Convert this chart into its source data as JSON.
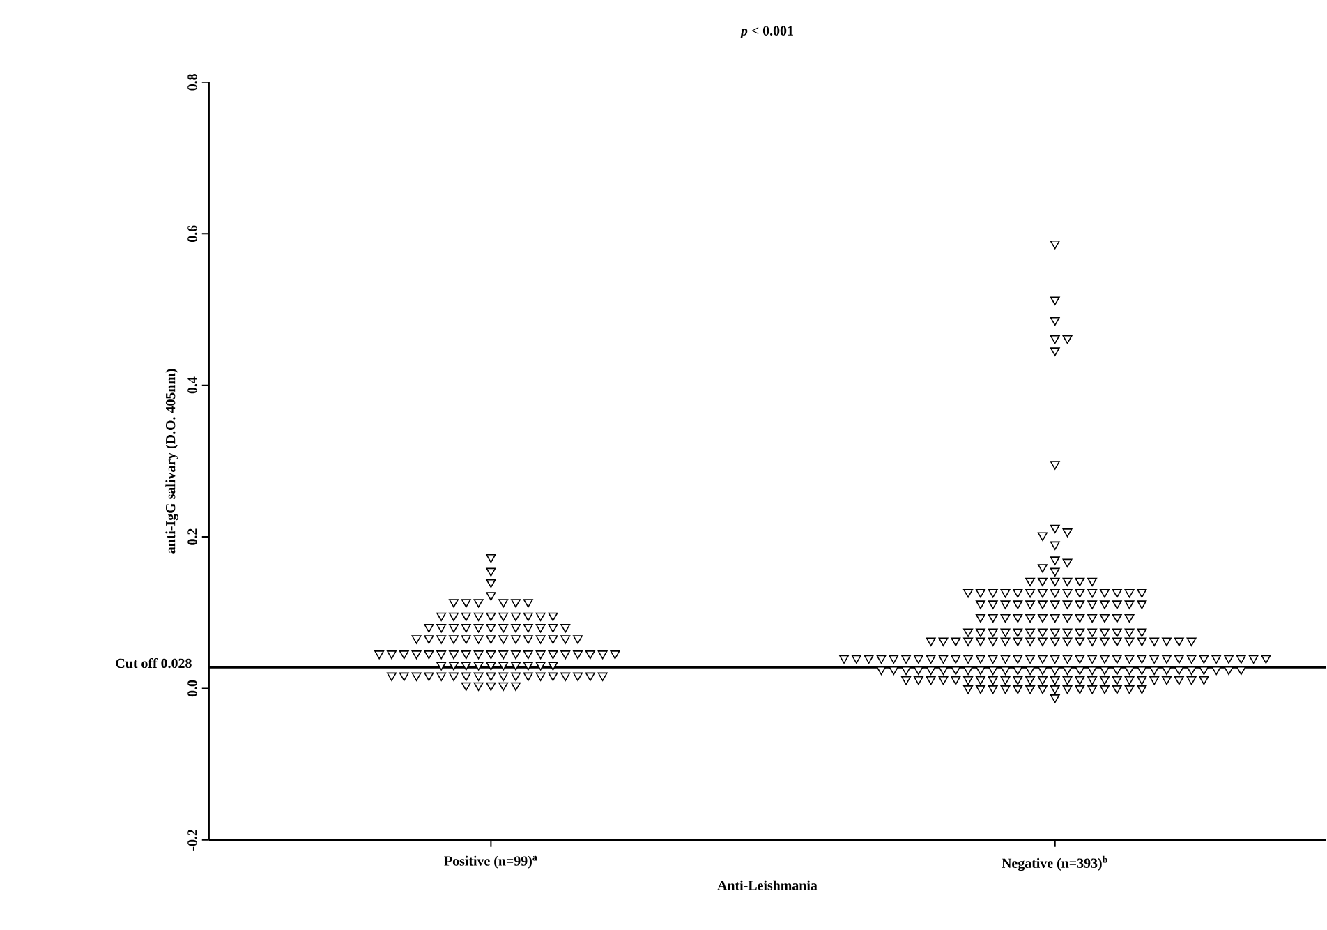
{
  "chart_data": {
    "type": "scatter",
    "title": "*p* < 0.001",
    "xlabel": "Anti-Leishmania",
    "ylabel": "anti-IgG salivary (D.O. 405nm)",
    "categories": [
      "Positive (n=99)$^{a}$",
      "Negative (n=393)$^{b}$"
    ],
    "ylim": [
      -0.2,
      0.8
    ],
    "yticks": [
      -0.2,
      {
        "value": 0,
        "label": "0.0"
      },
      0.2,
      0.4,
      0.6,
      0.8
    ],
    "marker": "triangle",
    "ref_lines": [
      {
        "axis": "y",
        "value": 0.028,
        "label": "Cut off 0.028",
        "color": "#000000",
        "line_style": "solid"
      }
    ],
    "series": [
      {
        "color": "#000000",
        "x": [
          "Positive (n=99)$^{a}$",
          "Positive (n=99)$^{a}$",
          "Positive (n=99)$^{a}$",
          "Positive (n=99)$^{a}$",
          "Positive (n=99)$^{a}$",
          "Positive (n=99)$^{a}$",
          "Positive (n=99)$^{a}$",
          "Positive (n=99)$^{a}$",
          "Positive (n=99)$^{a}$",
          "Positive (n=99)$^{a}$",
          "Positive (n=99)$^{a}$",
          "Positive (n=99)$^{a}$",
          "Positive (n=99)$^{a}$",
          "Positive (n=99)$^{a}$",
          "Positive (n=99)$^{a}$",
          "Positive (n=99)$^{a}$",
          "Positive (n=99)$^{a}$",
          "Positive (n=99)$^{a}$",
          "Positive (n=99)$^{a}$",
          "Positive (n=99)$^{a}$",
          "Positive (n=99)$^{a}$",
          "Positive (n=99)$^{a}$",
          "Positive (n=99)$^{a}$",
          "Positive (n=99)$^{a}$",
          "Positive (n=99)$^{a}$",
          "Positive (n=99)$^{a}$",
          "Positive (n=99)$^{a}$",
          "Positive (n=99)$^{a}$",
          "Positive (n=99)$^{a}$",
          "Positive (n=99)$^{a}$",
          "Positive (n=99)$^{a}$",
          "Positive (n=99)$^{a}$",
          "Positive (n=99)$^{a}$",
          "Positive (n=99)$^{a}$",
          "Positive (n=99)$^{a}$",
          "Positive (n=99)$^{a}$",
          "Positive (n=99)$^{a}$",
          "Positive (n=99)$^{a}$",
          "Positive (n=99)$^{a}$",
          "Positive (n=99)$^{a}$",
          "Positive (n=99)$^{a}$",
          "Positive (n=99)$^{a}$",
          "Positive (n=99)$^{a}$",
          "Positive (n=99)$^{a}$",
          "Positive (n=99)$^{a}$",
          "Positive (n=99)$^{a}$",
          "Positive (n=99)$^{a}$",
          "Positive (n=99)$^{a}$",
          "Positive (n=99)$^{a}$",
          "Positive (n=99)$^{a}$",
          "Positive (n=99)$^{a}$",
          "Positive (n=99)$^{a}$",
          "Positive (n=99)$^{a}$",
          "Positive (n=99)$^{a}$",
          "Positive (n=99)$^{a}$",
          "Positive (n=99)$^{a}$",
          "Positive (n=99)$^{a}$",
          "Positive (n=99)$^{a}$",
          "Positive (n=99)$^{a}$",
          "Positive (n=99)$^{a}$",
          "Positive (n=99)$^{a}$",
          "Positive (n=99)$^{a}$",
          "Positive (n=99)$^{a}$",
          "Positive (n=99)$^{a}$",
          "Positive (n=99)$^{a}$",
          "Positive (n=99)$^{a}$",
          "Positive (n=99)$^{a}$",
          "Positive (n=99)$^{a}$",
          "Positive (n=99)$^{a}$",
          "Positive (n=99)$^{a}$",
          "Positive (n=99)$^{a}$",
          "Positive (n=99)$^{a}$",
          "Positive (n=99)$^{a}$",
          "Positive (n=99)$^{a}$",
          "Positive (n=99)$^{a}$",
          "Positive (n=99)$^{a}$",
          "Positive (n=99)$^{a}$",
          "Positive (n=99)$^{a}$",
          "Positive (n=99)$^{a}$",
          "Positive (n=99)$^{a}$",
          "Positive (n=99)$^{a}$",
          "Positive (n=99)$^{a}$",
          "Positive (n=99)$^{a}$",
          "Positive (n=99)$^{a}$",
          "Positive (n=99)$^{a}$",
          "Positive (n=99)$^{a}$",
          "Positive (n=99)$^{a}$",
          "Positive (n=99)$^{a}$",
          "Positive (n=99)$^{a}$",
          "Positive (n=99)$^{a}$",
          "Positive (n=99)$^{a}$",
          "Positive (n=99)$^{a}$",
          "Positive (n=99)$^{a}$",
          "Positive (n=99)$^{a}$",
          "Positive (n=99)$^{a}$",
          "Positive (n=99)$^{a}$",
          "Positive (n=99)$^{a}$",
          "Positive (n=99)$^{a}$",
          "Positive (n=99)$^{a}$"
        ],
        "values": [
          0.173,
          0.155,
          0.14,
          0.123,
          0.114,
          0.114,
          0.114,
          0.114,
          0.114,
          0.114,
          0.096,
          0.096,
          0.096,
          0.096,
          0.096,
          0.096,
          0.096,
          0.096,
          0.096,
          0.096,
          0.081,
          0.081,
          0.081,
          0.081,
          0.081,
          0.081,
          0.081,
          0.081,
          0.081,
          0.081,
          0.081,
          0.081,
          0.066,
          0.066,
          0.066,
          0.066,
          0.066,
          0.066,
          0.066,
          0.066,
          0.066,
          0.066,
          0.066,
          0.066,
          0.066,
          0.066,
          0.046,
          0.046,
          0.046,
          0.046,
          0.046,
          0.046,
          0.046,
          0.046,
          0.046,
          0.046,
          0.046,
          0.046,
          0.046,
          0.046,
          0.046,
          0.046,
          0.046,
          0.046,
          0.046,
          0.046,
          0.031,
          0.031,
          0.031,
          0.031,
          0.031,
          0.031,
          0.031,
          0.031,
          0.031,
          0.031,
          0.017,
          0.017,
          0.017,
          0.017,
          0.017,
          0.017,
          0.017,
          0.017,
          0.017,
          0.017,
          0.017,
          0.017,
          0.017,
          0.017,
          0.017,
          0.017,
          0.017,
          0.017,
          0.004,
          0.004,
          0.004,
          0.004,
          0.004
        ]
      },
      {
        "color": "#000000",
        "x": [
          "Negative (n=393)$^{b}$",
          "Negative (n=393)$^{b}$",
          "Negative (n=393)$^{b}$",
          "Negative (n=393)$^{b}$",
          "Negative (n=393)$^{b}$",
          "Negative (n=393)$^{b}$",
          "Negative (n=393)$^{b}$",
          "Negative (n=393)$^{b}$",
          "Negative (n=393)$^{b}$",
          "Negative (n=393)$^{b}$",
          "Negative (n=393)$^{b}$",
          "Negative (n=393)$^{b}$",
          "Negative (n=393)$^{b}$",
          "Negative (n=393)$^{b}$",
          "Negative (n=393)$^{b}$",
          "Negative (n=393)$^{b}$",
          "Negative (n=393)$^{b}$",
          "Negative (n=393)$^{b}$",
          "Negative (n=393)$^{b}$",
          "Negative (n=393)$^{b}$",
          "Negative (n=393)$^{b}$",
          "Negative (n=393)$^{b}$",
          "Negative (n=393)$^{b}$",
          "Negative (n=393)$^{b}$",
          "Negative (n=393)$^{b}$",
          "Negative (n=393)$^{b}$",
          "Negative (n=393)$^{b}$",
          "Negative (n=393)$^{b}$",
          "Negative (n=393)$^{b}$",
          "Negative (n=393)$^{b}$",
          "Negative (n=393)$^{b}$",
          "Negative (n=393)$^{b}$",
          "Negative (n=393)$^{b}$",
          "Negative (n=393)$^{b}$",
          "Negative (n=393)$^{b}$",
          "Negative (n=393)$^{b}$",
          "Negative (n=393)$^{b}$",
          "Negative (n=393)$^{b}$",
          "Negative (n=393)$^{b}$",
          "Negative (n=393)$^{b}$",
          "Negative (n=393)$^{b}$",
          "Negative (n=393)$^{b}$",
          "Negative (n=393)$^{b}$",
          "Negative (n=393)$^{b}$",
          "Negative (n=393)$^{b}$",
          "Negative (n=393)$^{b}$",
          "Negative (n=393)$^{b}$",
          "Negative (n=393)$^{b}$",
          "Negative (n=393)$^{b}$",
          "Negative (n=393)$^{b}$",
          "Negative (n=393)$^{b}$",
          "Negative (n=393)$^{b}$",
          "Negative (n=393)$^{b}$",
          "Negative (n=393)$^{b}$",
          "Negative (n=393)$^{b}$",
          "Negative (n=393)$^{b}$",
          "Negative (n=393)$^{b}$",
          "Negative (n=393)$^{b}$",
          "Negative (n=393)$^{b}$",
          "Negative (n=393)$^{b}$",
          "Negative (n=393)$^{b}$",
          "Negative (n=393)$^{b}$",
          "Negative (n=393)$^{b}$",
          "Negative (n=393)$^{b}$",
          "Negative (n=393)$^{b}$",
          "Negative (n=393)$^{b}$",
          "Negative (n=393)$^{b}$",
          "Negative (n=393)$^{b}$",
          "Negative (n=393)$^{b}$",
          "Negative (n=393)$^{b}$",
          "Negative (n=393)$^{b}$",
          "Negative (n=393)$^{b}$",
          "Negative (n=393)$^{b}$",
          "Negative (n=393)$^{b}$",
          "Negative (n=393)$^{b}$",
          "Negative (n=393)$^{b}$",
          "Negative (n=393)$^{b}$",
          "Negative (n=393)$^{b}$",
          "Negative (n=393)$^{b}$",
          "Negative (n=393)$^{b}$",
          "Negative (n=393)$^{b}$",
          "Negative (n=393)$^{b}$",
          "Negative (n=393)$^{b}$",
          "Negative (n=393)$^{b}$",
          "Negative (n=393)$^{b}$",
          "Negative (n=393)$^{b}$",
          "Negative (n=393)$^{b}$",
          "Negative (n=393)$^{b}$",
          "Negative (n=393)$^{b}$",
          "Negative (n=393)$^{b}$",
          "Negative (n=393)$^{b}$",
          "Negative (n=393)$^{b}$",
          "Negative (n=393)$^{b}$",
          "Negative (n=393)$^{b}$",
          "Negative (n=393)$^{b}$",
          "Negative (n=393)$^{b}$",
          "Negative (n=393)$^{b}$",
          "Negative (n=393)$^{b}$",
          "Negative (n=393)$^{b}$",
          "Negative (n=393)$^{b}$",
          "Negative (n=393)$^{b}$",
          "Negative (n=393)$^{b}$",
          "Negative (n=393)$^{b}$",
          "Negative (n=393)$^{b}$",
          "Negative (n=393)$^{b}$",
          "Negative (n=393)$^{b}$",
          "Negative (n=393)$^{b}$",
          "Negative (n=393)$^{b}$",
          "Negative (n=393)$^{b}$",
          "Negative (n=393)$^{b}$",
          "Negative (n=393)$^{b}$",
          "Negative (n=393)$^{b}$",
          "Negative (n=393)$^{b}$",
          "Negative (n=393)$^{b}$",
          "Negative (n=393)$^{b}$",
          "Negative (n=393)$^{b}$",
          "Negative (n=393)$^{b}$",
          "Negative (n=393)$^{b}$",
          "Negative (n=393)$^{b}$",
          "Negative (n=393)$^{b}$",
          "Negative (n=393)$^{b}$",
          "Negative (n=393)$^{b}$",
          "Negative (n=393)$^{b}$",
          "Negative (n=393)$^{b}$",
          "Negative (n=393)$^{b}$",
          "Negative (n=393)$^{b}$",
          "Negative (n=393)$^{b}$",
          "Negative (n=393)$^{b}$",
          "Negative (n=393)$^{b}$",
          "Negative (n=393)$^{b}$",
          "Negative (n=393)$^{b}$",
          "Negative (n=393)$^{b}$",
          "Negative (n=393)$^{b}$",
          "Negative (n=393)$^{b}$",
          "Negative (n=393)$^{b}$",
          "Negative (n=393)$^{b}$",
          "Negative (n=393)$^{b}$",
          "Negative (n=393)$^{b}$",
          "Negative (n=393)$^{b}$",
          "Negative (n=393)$^{b}$",
          "Negative (n=393)$^{b}$",
          "Negative (n=393)$^{b}$",
          "Negative (n=393)$^{b}$",
          "Negative (n=393)$^{b}$",
          "Negative (n=393)$^{b}$",
          "Negative (n=393)$^{b}$",
          "Negative (n=393)$^{b}$",
          "Negative (n=393)$^{b}$",
          "Negative (n=393)$^{b}$",
          "Negative (n=393)$^{b}$",
          "Negative (n=393)$^{b}$",
          "Negative (n=393)$^{b}$",
          "Negative (n=393)$^{b}$",
          "Negative (n=393)$^{b}$",
          "Negative (n=393)$^{b}$",
          "Negative (n=393)$^{b}$",
          "Negative (n=393)$^{b}$",
          "Negative (n=393)$^{b}$",
          "Negative (n=393)$^{b}$",
          "Negative (n=393)$^{b}$",
          "Negative (n=393)$^{b}$",
          "Negative (n=393)$^{b}$",
          "Negative (n=393)$^{b}$",
          "Negative (n=393)$^{b}$",
          "Negative (n=393)$^{b}$",
          "Negative (n=393)$^{b}$",
          "Negative (n=393)$^{b}$",
          "Negative (n=393)$^{b}$",
          "Negative (n=393)$^{b}$",
          "Negative (n=393)$^{b}$",
          "Negative (n=393)$^{b}$",
          "Negative (n=393)$^{b}$",
          "Negative (n=393)$^{b}$",
          "Negative (n=393)$^{b}$",
          "Negative (n=393)$^{b}$",
          "Negative (n=393)$^{b}$",
          "Negative (n=393)$^{b}$",
          "Negative (n=393)$^{b}$",
          "Negative (n=393)$^{b}$",
          "Negative (n=393)$^{b}$",
          "Negative (n=393)$^{b}$",
          "Negative (n=393)$^{b}$",
          "Negative (n=393)$^{b}$",
          "Negative (n=393)$^{b}$",
          "Negative (n=393)$^{b}$",
          "Negative (n=393)$^{b}$",
          "Negative (n=393)$^{b}$",
          "Negative (n=393)$^{b}$",
          "Negative (n=393)$^{b}$",
          "Negative (n=393)$^{b}$",
          "Negative (n=393)$^{b}$",
          "Negative (n=393)$^{b}$",
          "Negative (n=393)$^{b}$",
          "Negative (n=393)$^{b}$",
          "Negative (n=393)$^{b}$",
          "Negative (n=393)$^{b}$",
          "Negative (n=393)$^{b}$",
          "Negative (n=393)$^{b}$",
          "Negative (n=393)$^{b}$",
          "Negative (n=393)$^{b}$",
          "Negative (n=393)$^{b}$",
          "Negative (n=393)$^{b}$",
          "Negative (n=393)$^{b}$",
          "Negative (n=393)$^{b}$",
          "Negative (n=393)$^{b}$",
          "Negative (n=393)$^{b}$"
        ],
        "values": [
          0.587,
          0.513,
          0.486,
          0.462,
          0.462,
          0.446,
          0.296,
          0.212,
          0.207,
          0.202,
          0.19,
          0.17,
          0.167,
          0.16,
          0.155,
          0.142,
          0.142,
          0.142,
          0.142,
          0.142,
          0.142,
          0.127,
          0.127,
          0.127,
          0.127,
          0.127,
          0.127,
          0.127,
          0.127,
          0.127,
          0.127,
          0.127,
          0.127,
          0.127,
          0.127,
          0.127,
          0.112,
          0.112,
          0.112,
          0.112,
          0.112,
          0.112,
          0.112,
          0.112,
          0.112,
          0.112,
          0.112,
          0.112,
          0.112,
          0.112,
          0.094,
          0.094,
          0.094,
          0.094,
          0.094,
          0.094,
          0.094,
          0.094,
          0.094,
          0.094,
          0.094,
          0.094,
          0.094,
          0.075,
          0.075,
          0.075,
          0.075,
          0.075,
          0.075,
          0.075,
          0.075,
          0.075,
          0.075,
          0.075,
          0.075,
          0.075,
          0.075,
          0.075,
          0.063,
          0.063,
          0.063,
          0.063,
          0.063,
          0.063,
          0.063,
          0.063,
          0.063,
          0.063,
          0.063,
          0.063,
          0.063,
          0.063,
          0.063,
          0.063,
          0.063,
          0.063,
          0.063,
          0.063,
          0.063,
          0.063,
          0.04,
          0.04,
          0.04,
          0.04,
          0.04,
          0.04,
          0.04,
          0.04,
          0.04,
          0.04,
          0.04,
          0.04,
          0.04,
          0.04,
          0.04,
          0.04,
          0.04,
          0.04,
          0.04,
          0.04,
          0.04,
          0.04,
          0.04,
          0.04,
          0.04,
          0.04,
          0.04,
          0.04,
          0.04,
          0.04,
          0.04,
          0.04,
          0.04,
          0.04,
          0.04,
          0.025,
          0.025,
          0.025,
          0.025,
          0.025,
          0.025,
          0.025,
          0.025,
          0.025,
          0.025,
          0.025,
          0.025,
          0.025,
          0.025,
          0.025,
          0.025,
          0.025,
          0.025,
          0.025,
          0.025,
          0.025,
          0.025,
          0.025,
          0.025,
          0.025,
          0.025,
          0.025,
          0.025,
          0.025,
          0.025,
          0.012,
          0.012,
          0.012,
          0.012,
          0.012,
          0.012,
          0.012,
          0.012,
          0.012,
          0.012,
          0.012,
          0.012,
          0.012,
          0.012,
          0.012,
          0.012,
          0.012,
          0.012,
          0.012,
          0.012,
          0.012,
          0.012,
          0.012,
          0.012,
          0.012,
          0.0,
          0.0,
          0.0,
          0.0,
          0.0,
          0.0,
          0.0,
          0.0,
          0.0,
          0.0,
          0.0,
          0.0,
          0.0,
          0.0,
          0.0,
          -0.012
        ]
      }
    ]
  }
}
